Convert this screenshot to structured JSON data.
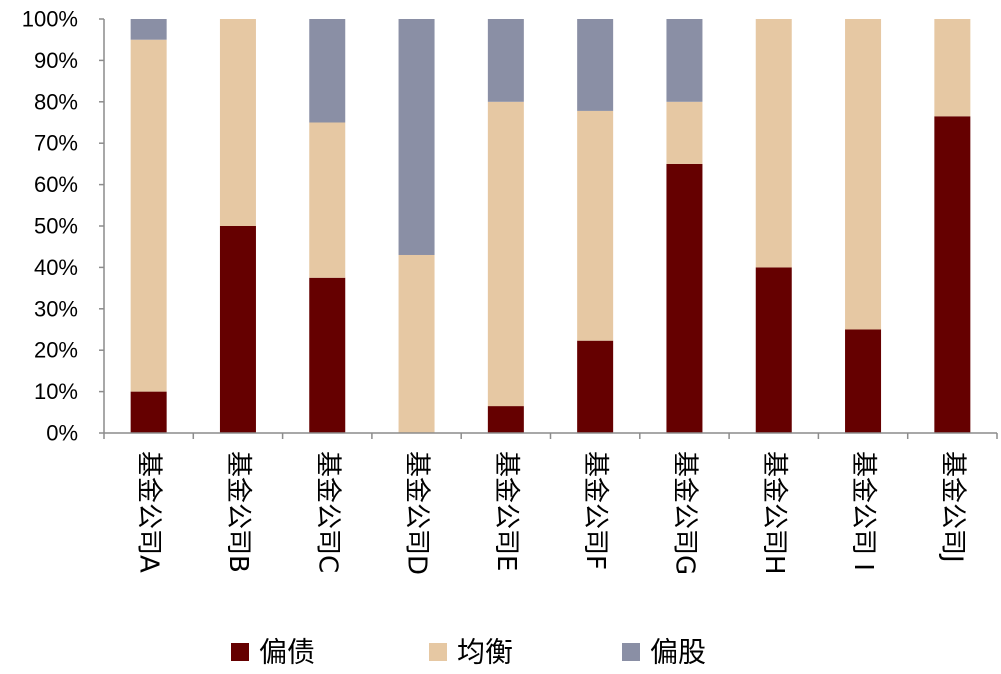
{
  "chart_data": {
    "type": "bar",
    "stacked": true,
    "percent_stacked": true,
    "categories": [
      "基金公司A",
      "基金公司B",
      "基金公司C",
      "基金公司D",
      "基金公司E",
      "基金公司F",
      "基金公司G",
      "基金公司H",
      "基金公司 I",
      "基金公司J"
    ],
    "series": [
      {
        "name": "偏债",
        "color": "#650000",
        "values": [
          10,
          50,
          37.5,
          0,
          6.5,
          22.3,
          65,
          40,
          25,
          76.5
        ]
      },
      {
        "name": "均衡",
        "color": "#E6C8A3",
        "values": [
          85,
          50,
          37.5,
          43,
          73.5,
          55.5,
          15,
          60,
          75,
          23.5
        ]
      },
      {
        "name": "偏股",
        "color": "#8A8FA5",
        "values": [
          5,
          0,
          25,
          57,
          20,
          22.2,
          20,
          0,
          0,
          0
        ]
      }
    ],
    "ylim": [
      0,
      100
    ],
    "yticks": [
      "0%",
      "10%",
      "20%",
      "30%",
      "40%",
      "50%",
      "60%",
      "70%",
      "80%",
      "90%",
      "100%"
    ],
    "category_label_orientation": "rotated-90-clockwise",
    "legend_position": "bottom",
    "grid": false,
    "title": "",
    "xlabel": "",
    "ylabel": ""
  }
}
